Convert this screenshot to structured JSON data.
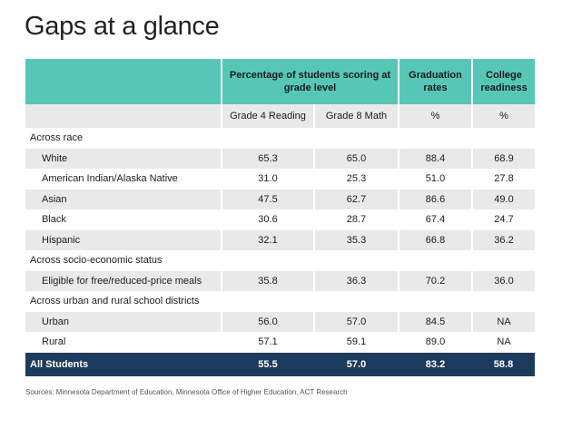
{
  "title": "Gaps at a glance",
  "header": {
    "group1": "Percentage of students scoring at grade level",
    "group2": "Graduation rates",
    "group3": "College readiness"
  },
  "subheader": {
    "col1": "Grade 4 Reading",
    "col2": "Grade 8 Math",
    "col3": "%",
    "col4": "%"
  },
  "rows": [
    {
      "type": "group",
      "label": "Across race"
    },
    {
      "type": "data",
      "label": "White",
      "values": [
        "65.3",
        "65.0",
        "88.4",
        "68.9"
      ]
    },
    {
      "type": "data",
      "label": "American Indian/Alaska Native",
      "values": [
        "31.0",
        "25.3",
        "51.0",
        "27.8"
      ]
    },
    {
      "type": "data",
      "label": "Asian",
      "values": [
        "47.5",
        "62.7",
        "86.6",
        "49.0"
      ]
    },
    {
      "type": "data",
      "label": "Black",
      "values": [
        "30.6",
        "28.7",
        "67.4",
        "24.7"
      ]
    },
    {
      "type": "data",
      "label": "Hispanic",
      "values": [
        "32.1",
        "35.3",
        "66.8",
        "36.2"
      ]
    },
    {
      "type": "group",
      "label": "Across socio-economic status"
    },
    {
      "type": "data",
      "label": "Eligible for free/reduced-price meals",
      "values": [
        "35.8",
        "36.3",
        "70.2",
        "36.0"
      ]
    },
    {
      "type": "group",
      "label": "Across urban and rural school districts"
    },
    {
      "type": "data",
      "label": "Urban",
      "values": [
        "56.0",
        "57.0",
        "84.5",
        "NA"
      ]
    },
    {
      "type": "data",
      "label": "Rural",
      "values": [
        "57.1",
        "59.1",
        "89.0",
        "NA"
      ]
    }
  ],
  "total": {
    "label": "All Students",
    "values": [
      "55.5",
      "57.0",
      "83.2",
      "58.8"
    ]
  },
  "source": "Sources: Minnesota Department of Education, Minnesota Office of Higher Education, ACT Research",
  "colors": {
    "header": "#56c7b7",
    "total": "#1d3b5c",
    "shade": "#e9e9e9"
  }
}
